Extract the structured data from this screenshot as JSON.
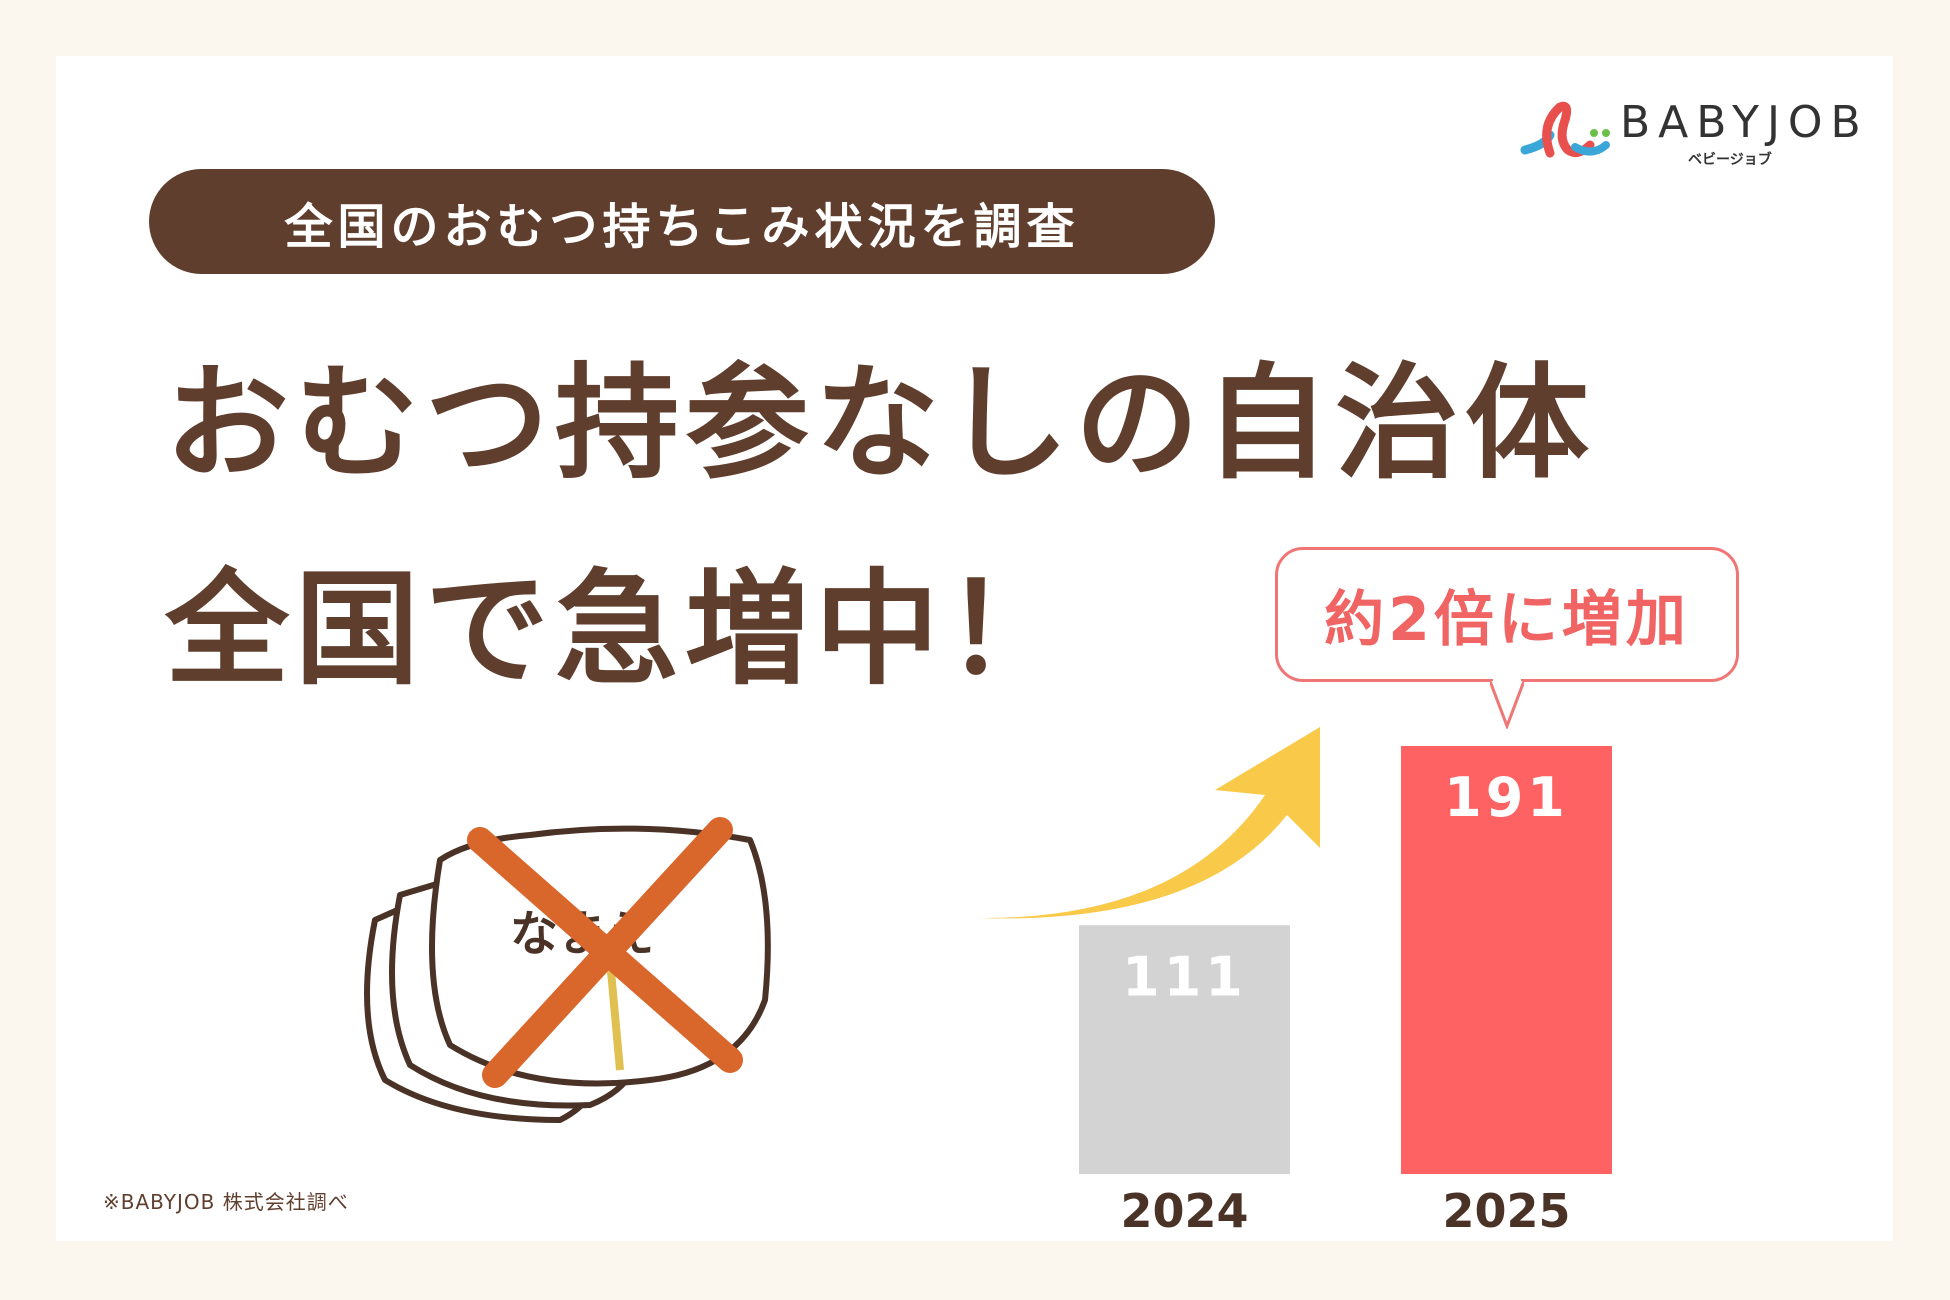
{
  "badge": {
    "text": "全国のおむつ持ちこみ状況を調査"
  },
  "headline": {
    "line1": "おむつ持参なしの自治体",
    "line2": "全国で急増中！"
  },
  "callout": {
    "text": "約2倍に増加"
  },
  "logo": {
    "text": "BABYJOB",
    "kana": "ベビージョブ"
  },
  "illustration": {
    "label": "なまえ"
  },
  "footnote": "※BABYJOB 株式会社調べ",
  "colors": {
    "brown": "#603e2e",
    "bar_2024": "#d3d3d3",
    "bar_2025": "#ff6262",
    "arrow": "#f9c94a",
    "callout": "#f06464"
  },
  "chart_data": {
    "type": "bar",
    "categories": [
      "2024",
      "2025"
    ],
    "values": [
      111,
      191
    ],
    "title": "",
    "xlabel": "",
    "ylabel": ""
  }
}
